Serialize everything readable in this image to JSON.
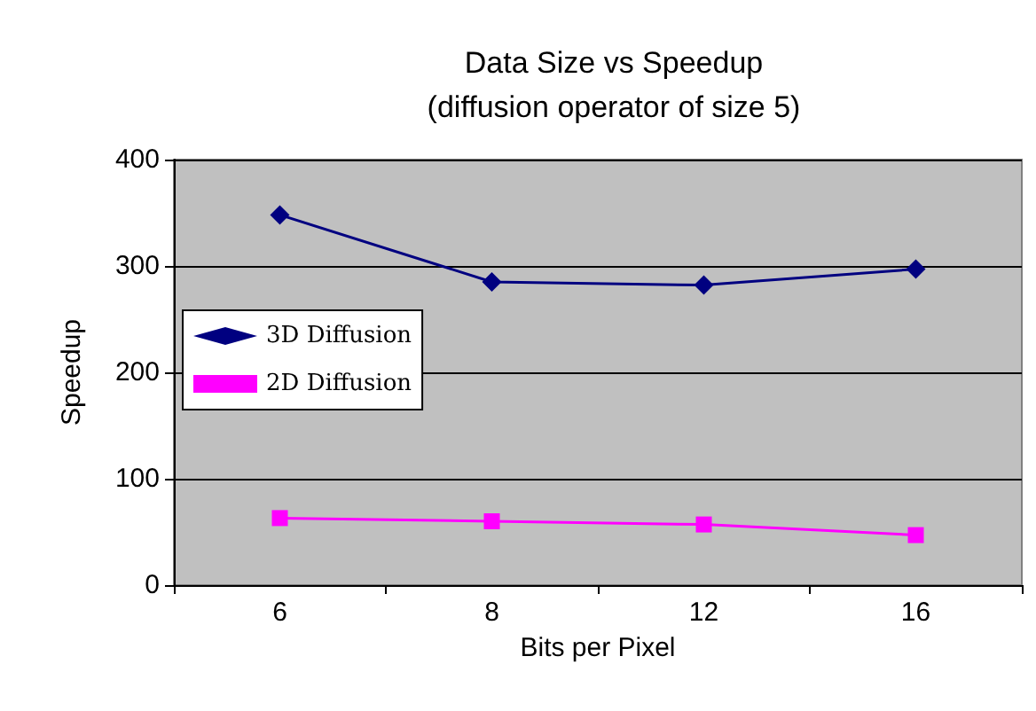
{
  "chart_data": {
    "type": "line",
    "title": "Data Size vs Speedup",
    "subtitle": "(diffusion operator of size 5)",
    "xlabel": "Bits per Pixel",
    "ylabel": "Speedup",
    "categories": [
      "6",
      "8",
      "12",
      "16"
    ],
    "series": [
      {
        "name": "3D Diffusion",
        "color": "#000080",
        "marker": "diamond",
        "values": [
          348,
          285,
          282,
          297
        ]
      },
      {
        "name": "2D Diffusion",
        "color": "#ff00ff",
        "marker": "square",
        "values": [
          63,
          60,
          57,
          47
        ]
      }
    ],
    "ylim": [
      0,
      400
    ],
    "yticks": [
      0,
      100,
      200,
      300,
      400
    ],
    "grid": "y",
    "legend": "left"
  }
}
